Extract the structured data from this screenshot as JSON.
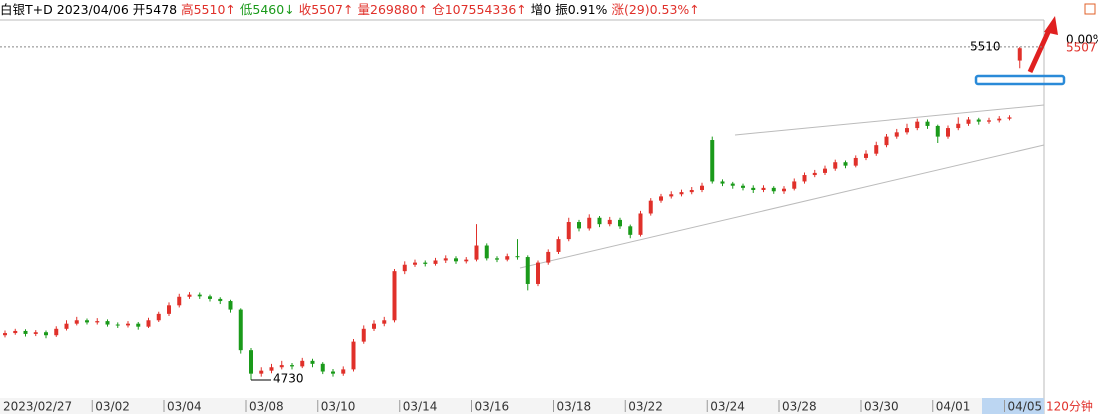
{
  "chart_data": {
    "type": "candlestick",
    "header": [
      {
        "text": "白银T+D",
        "color": "#000000"
      },
      {
        "text": "2023/04/06",
        "color": "#000000"
      },
      {
        "text": "开5478",
        "color": "#000000"
      },
      {
        "text": "高5510↑",
        "color": "#e0302a"
      },
      {
        "text": "低5460↓",
        "color": "#1a9a1a"
      },
      {
        "text": "收5507↑",
        "color": "#e0302a"
      },
      {
        "text": "量269880↑",
        "color": "#e0302a"
      },
      {
        "text": "仓107554336↑",
        "color": "#e0302a"
      },
      {
        "text": "增0",
        "color": "#000000"
      },
      {
        "text": "振0.91%",
        "color": "#000000"
      },
      {
        "text": "涨(29)0.53%↑",
        "color": "#e0302a"
      }
    ],
    "period": "120分钟",
    "right_label": "0.00%",
    "price_line": 5510,
    "last_price": 5507,
    "low_marker": 4730,
    "up_color": "#e0302a",
    "down_color": "#1a9a1a",
    "ylim": [
      4688,
      5573
    ],
    "categories": [
      "2023/02/27",
      null,
      null,
      null,
      null,
      null,
      null,
      null,
      null,
      "03/02",
      null,
      null,
      null,
      null,
      null,
      null,
      "03/04",
      null,
      null,
      null,
      null,
      null,
      null,
      null,
      "03/08",
      null,
      null,
      null,
      null,
      null,
      null,
      "03/10",
      null,
      null,
      null,
      null,
      null,
      null,
      null,
      "03/14",
      null,
      null,
      null,
      null,
      null,
      null,
      "03/16",
      null,
      null,
      null,
      null,
      null,
      null,
      null,
      "03/18",
      null,
      null,
      null,
      null,
      null,
      null,
      "03/22",
      null,
      null,
      null,
      null,
      null,
      null,
      null,
      "03/24",
      null,
      null,
      null,
      null,
      null,
      null,
      "03/28",
      null,
      null,
      null,
      null,
      null,
      null,
      null,
      "03/30",
      null,
      null,
      null,
      null,
      null,
      null,
      "04/01",
      null,
      null,
      null,
      null,
      null,
      null,
      "04/05",
      null
    ],
    "open": [
      4835,
      4840,
      4845,
      4838,
      4842,
      4835,
      4850,
      4862,
      4870,
      4865,
      4868,
      4860,
      4858,
      4862,
      4855,
      4870,
      4885,
      4905,
      4925,
      4930,
      4926,
      4920,
      4915,
      4895,
      4800,
      4745,
      4752,
      4760,
      4765,
      4762,
      4775,
      4768,
      4750,
      4745,
      4755,
      4820,
      4850,
      4862,
      4870,
      4985,
      5000,
      5005,
      5002,
      5010,
      5015,
      5008,
      5012,
      5045,
      5015,
      5012,
      5020,
      5018,
      4955,
      5005,
      5030,
      5060,
      5100,
      5085,
      5110,
      5095,
      5105,
      5090,
      5070,
      5120,
      5150,
      5160,
      5165,
      5170,
      5175,
      5292,
      5195,
      5190,
      5185,
      5180,
      5175,
      5180,
      5172,
      5178,
      5195,
      5210,
      5215,
      5225,
      5240,
      5232,
      5250,
      5260,
      5280,
      5300,
      5310,
      5320,
      5335,
      5325,
      5300,
      5320,
      5330,
      5340,
      5335,
      5338,
      5342,
      5478
    ],
    "high": [
      4846,
      4850,
      4849,
      4847,
      4846,
      4856,
      4870,
      4878,
      4874,
      4875,
      4872,
      4865,
      4868,
      4866,
      4876,
      4890,
      4912,
      4932,
      4936,
      4935,
      4930,
      4924,
      4918,
      4898,
      4805,
      4760,
      4768,
      4775,
      4770,
      4782,
      4780,
      4772,
      4756,
      4762,
      4826,
      4858,
      4870,
      4878,
      4990,
      5008,
      5012,
      5010,
      5016,
      5022,
      5020,
      5018,
      5095,
      5050,
      5020,
      5026,
      5060,
      5022,
      5010,
      5036,
      5066,
      5110,
      5105,
      5118,
      5114,
      5112,
      5110,
      5094,
      5126,
      5156,
      5166,
      5172,
      5176,
      5182,
      5192,
      5300,
      5200,
      5194,
      5190,
      5186,
      5186,
      5184,
      5184,
      5202,
      5216,
      5222,
      5232,
      5246,
      5244,
      5256,
      5268,
      5288,
      5306,
      5318,
      5330,
      5342,
      5340,
      5328,
      5326,
      5345,
      5346,
      5344,
      5344,
      5348,
      5350,
      5510
    ],
    "low": [
      4830,
      4836,
      4832,
      4833,
      4828,
      4831,
      4846,
      4858,
      4860,
      4860,
      4855,
      4852,
      4853,
      4848,
      4852,
      4866,
      4880,
      4900,
      4920,
      4920,
      4914,
      4908,
      4888,
      4792,
      4730,
      4738,
      4746,
      4755,
      4755,
      4758,
      4760,
      4744,
      4738,
      4740,
      4750,
      4815,
      4845,
      4856,
      4865,
      4978,
      4995,
      4996,
      4998,
      5004,
      5002,
      5003,
      5008,
      5010,
      5006,
      5008,
      5012,
      4940,
      4950,
      5000,
      5025,
      5055,
      5078,
      5080,
      5088,
      5090,
      5084,
      5062,
      5066,
      5115,
      5145,
      5155,
      5160,
      5165,
      5170,
      5190,
      5184,
      5178,
      5174,
      5168,
      5170,
      5166,
      5166,
      5174,
      5190,
      5205,
      5210,
      5220,
      5226,
      5228,
      5245,
      5255,
      5275,
      5295,
      5305,
      5315,
      5318,
      5285,
      5295,
      5315,
      5325,
      5328,
      5330,
      5333,
      5338,
      5460
    ],
    "close": [
      4840,
      4845,
      4838,
      4842,
      4835,
      4850,
      4862,
      4870,
      4865,
      4868,
      4860,
      4858,
      4862,
      4855,
      4870,
      4885,
      4905,
      4925,
      4930,
      4926,
      4920,
      4915,
      4895,
      4800,
      4745,
      4752,
      4760,
      4765,
      4762,
      4775,
      4768,
      4750,
      4745,
      4755,
      4820,
      4850,
      4862,
      4870,
      4985,
      5000,
      5005,
      5002,
      5010,
      5015,
      5008,
      5012,
      5045,
      5015,
      5012,
      5020,
      5018,
      4955,
      5005,
      5030,
      5060,
      5100,
      5085,
      5110,
      5095,
      5105,
      5090,
      5070,
      5120,
      5150,
      5160,
      5165,
      5170,
      5175,
      5185,
      5195,
      5190,
      5185,
      5180,
      5175,
      5180,
      5172,
      5178,
      5195,
      5210,
      5215,
      5225,
      5240,
      5232,
      5250,
      5260,
      5280,
      5300,
      5310,
      5320,
      5335,
      5325,
      5300,
      5320,
      5330,
      5340,
      5335,
      5338,
      5342,
      5345,
      5507
    ]
  }
}
